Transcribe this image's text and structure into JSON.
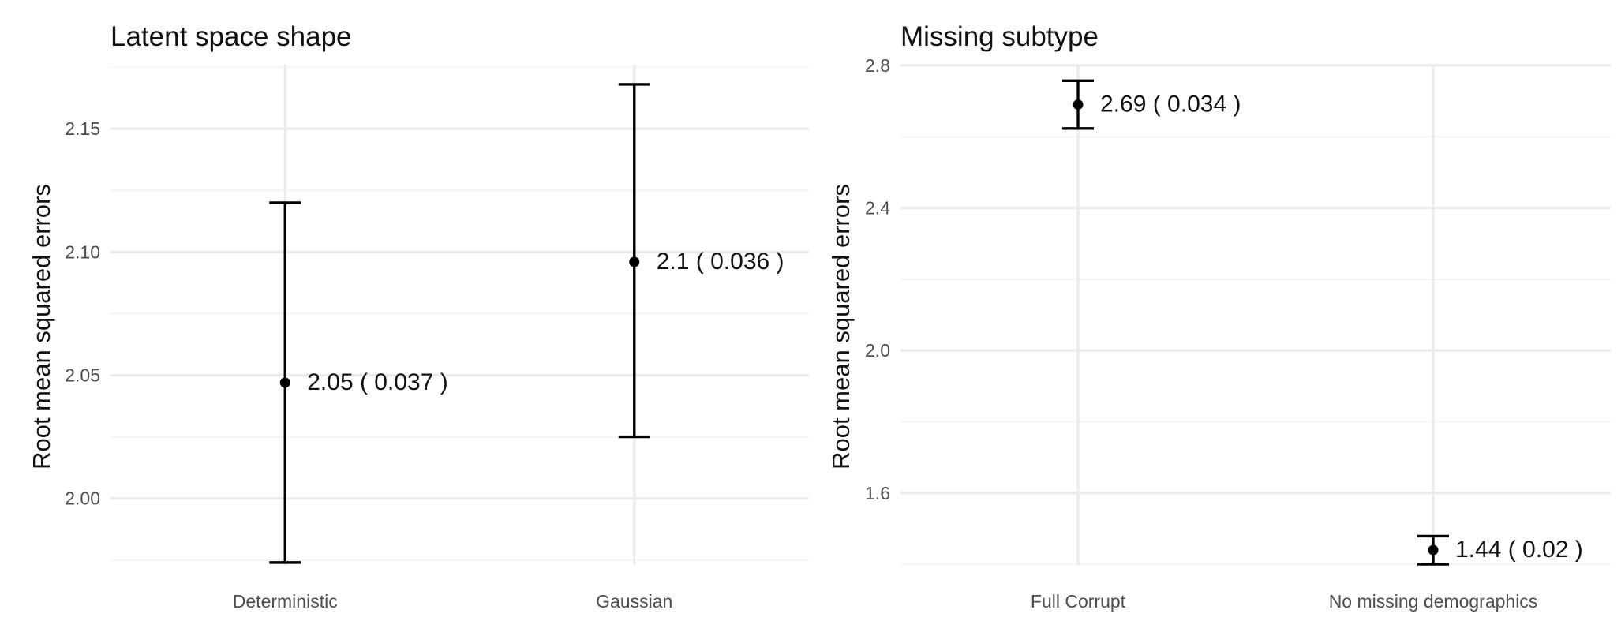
{
  "chart_data": [
    {
      "type": "scatter",
      "title": "Latent space shape",
      "ylabel": "Root mean squared errors",
      "xlabel": "",
      "categories": [
        "Deterministic",
        "Gaussian"
      ],
      "points": [
        {
          "category": "Deterministic",
          "y": 2.047,
          "low": 1.974,
          "high": 2.12,
          "label": "2.05  ( 0.037 )"
        },
        {
          "category": "Gaussian",
          "y": 2.096,
          "low": 2.025,
          "high": 2.168,
          "label": "2.1  ( 0.036 )"
        }
      ],
      "yticks": [
        2.0,
        2.05,
        2.1,
        2.15
      ],
      "ytick_labels": [
        "2.00",
        "2.05",
        "2.10",
        "2.15"
      ],
      "ylim": [
        1.973,
        2.176
      ],
      "grid": true,
      "legend": "none"
    },
    {
      "type": "scatter",
      "title": "Missing subtype",
      "ylabel": "Root mean squared errors",
      "xlabel": "",
      "categories": [
        "Full Corrupt",
        "No missing demographics"
      ],
      "points": [
        {
          "category": "Full Corrupt",
          "y": 2.69,
          "low": 2.623,
          "high": 2.757,
          "label": "2.69  ( 0.034 )"
        },
        {
          "category": "No missing demographics",
          "y": 1.44,
          "low": 1.4,
          "high": 1.479,
          "label": "1.44  ( 0.02 )"
        }
      ],
      "yticks": [
        1.6,
        2.0,
        2.4,
        2.8
      ],
      "ytick_labels": [
        "1.6",
        "2.0",
        "2.4",
        "2.8"
      ],
      "ylim": [
        1.398,
        2.802
      ],
      "grid": true,
      "legend": "none"
    }
  ]
}
